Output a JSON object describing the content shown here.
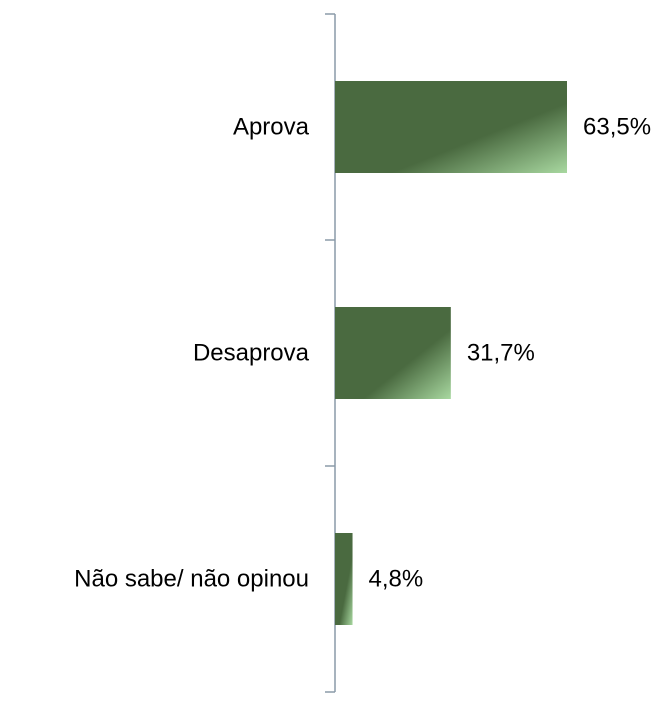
{
  "chart_data": {
    "type": "bar",
    "orientation": "horizontal",
    "categories": [
      "Aprova",
      "Desaprova",
      "Não sabe/ não opinou"
    ],
    "values": [
      63.5,
      31.7,
      4.8
    ],
    "data_labels": [
      "63,5%",
      "31,7%",
      "4,8%"
    ],
    "title": "",
    "xlabel": "",
    "ylabel": "",
    "grid": false,
    "legend": "none",
    "colors": {
      "bar_dark": "#4a6a40",
      "bar_light": "#a8d8a0",
      "axis": "#8a9aa8"
    }
  }
}
